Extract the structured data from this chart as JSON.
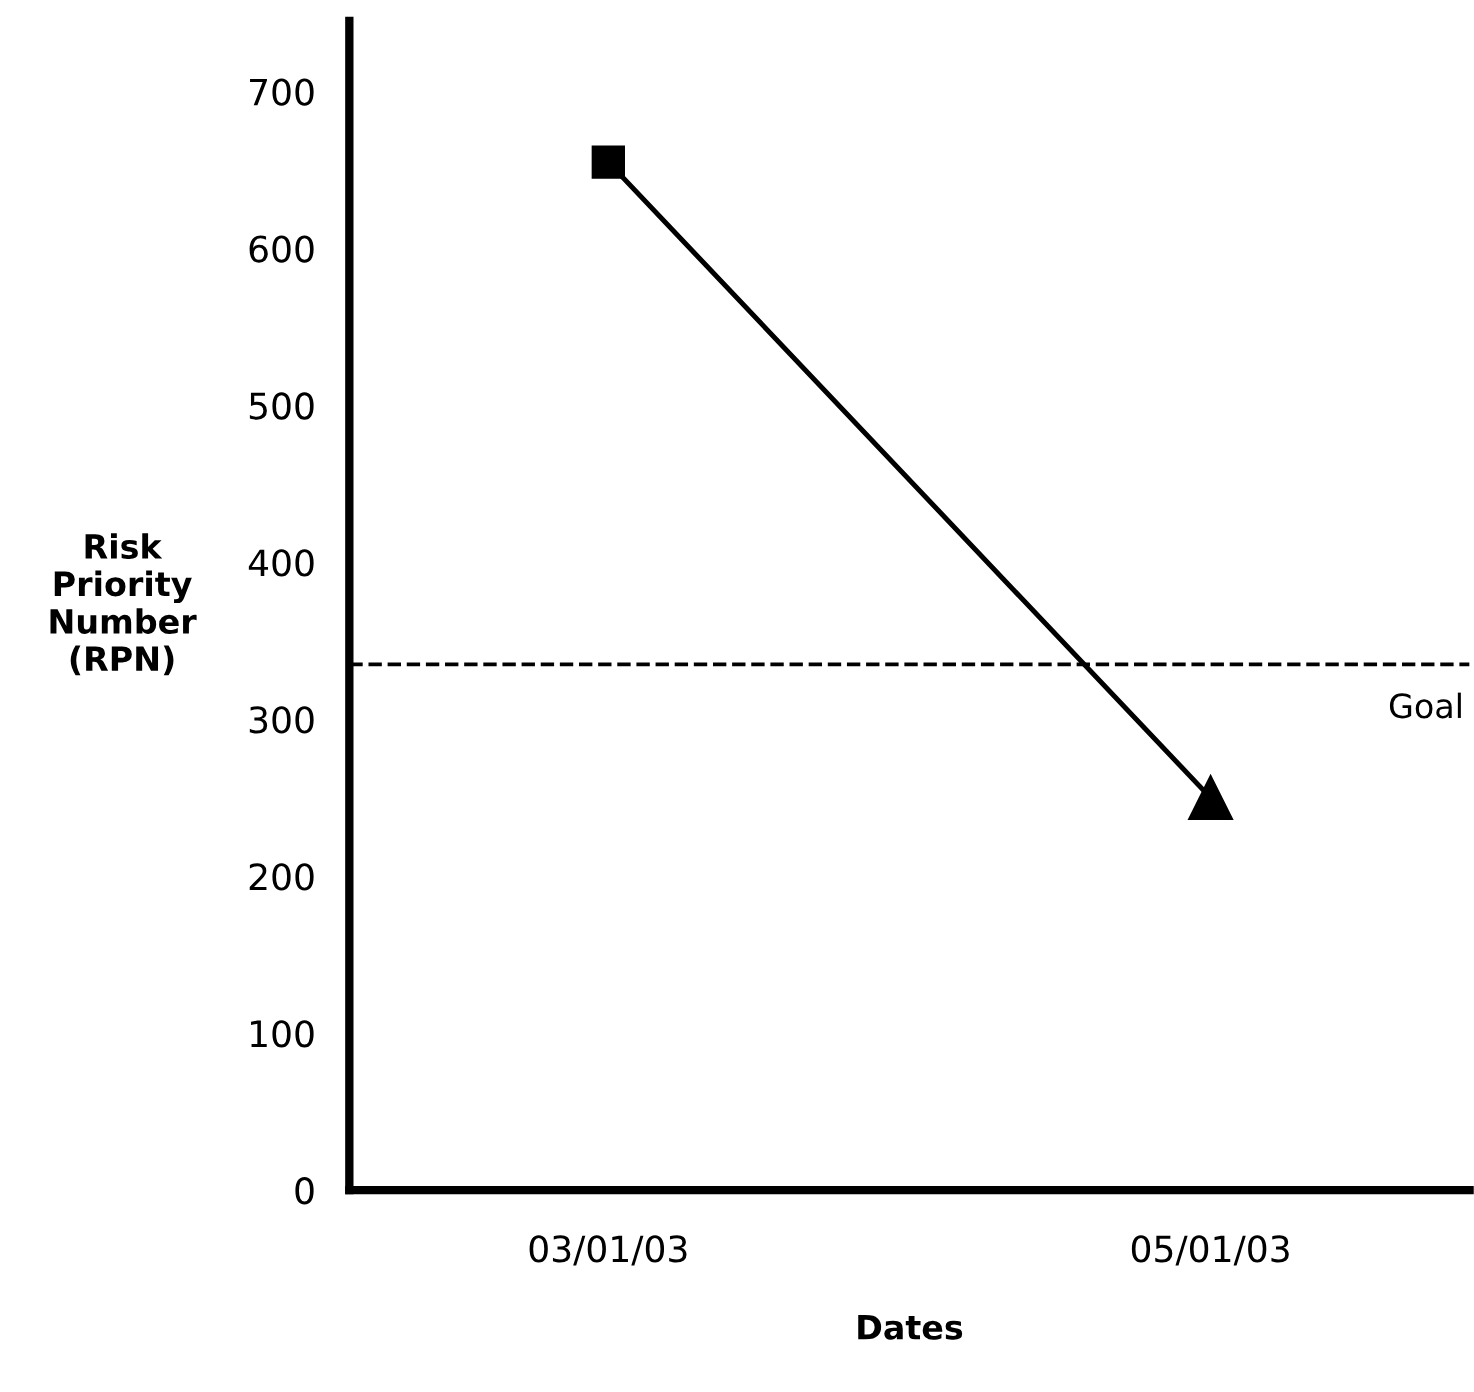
{
  "chart_data": {
    "type": "line",
    "xlabel": "Dates",
    "ylabel": "Risk\nPriority\nNumber\n(RPN)",
    "categories": [
      "03/01/03",
      "05/01/03"
    ],
    "series": [
      {
        "color": "#000000",
        "values": [
          655,
          250
        ],
        "marker": [
          "square",
          "triangle"
        ]
      }
    ],
    "ylim": [
      0,
      745
    ],
    "yticks": [
      0,
      100,
      200,
      300,
      400,
      500,
      600,
      700
    ],
    "ref_lines": [
      {
        "axis": "y",
        "value": 335,
        "label": "Goal",
        "color": "#000000",
        "line_style": "dashed"
      }
    ],
    "grid": false,
    "legend": false,
    "line_style": "solid"
  }
}
